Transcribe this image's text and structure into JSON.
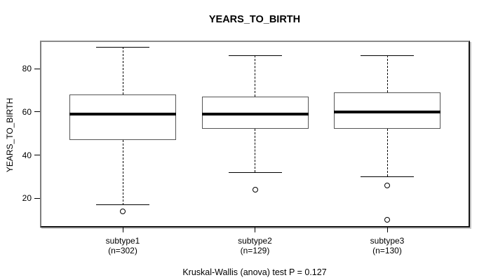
{
  "chart_data": {
    "type": "boxplot",
    "title": "YEARS_TO_BIRTH",
    "ylabel": "YEARS_TO_BIRTH",
    "caption": "Kruskal-Wallis (anova) test P = 0.127",
    "y_ticks": [
      20,
      40,
      60,
      80
    ],
    "ylim": [
      7,
      93
    ],
    "grid": false,
    "legend": "none",
    "groups": [
      {
        "label": "subtype1",
        "sublabel": "(n=302)",
        "whisker_low": 17,
        "q1": 47,
        "median": 59,
        "q3": 68,
        "whisker_high": 90,
        "outliers": [
          14
        ]
      },
      {
        "label": "subtype2",
        "sublabel": "(n=129)",
        "whisker_low": 32,
        "q1": 52,
        "median": 59,
        "q3": 67,
        "whisker_high": 86,
        "outliers": [
          24
        ]
      },
      {
        "label": "subtype3",
        "sublabel": "(n=130)",
        "whisker_low": 30,
        "q1": 52,
        "median": 60,
        "q3": 69,
        "whisker_high": 86,
        "outliers": [
          26,
          10
        ]
      }
    ],
    "colors": {
      "box_border": "#555555",
      "median": "#000000",
      "whisker": "#000000",
      "outlier": "#000000",
      "text": "#000000",
      "background": "#ffffff"
    }
  }
}
